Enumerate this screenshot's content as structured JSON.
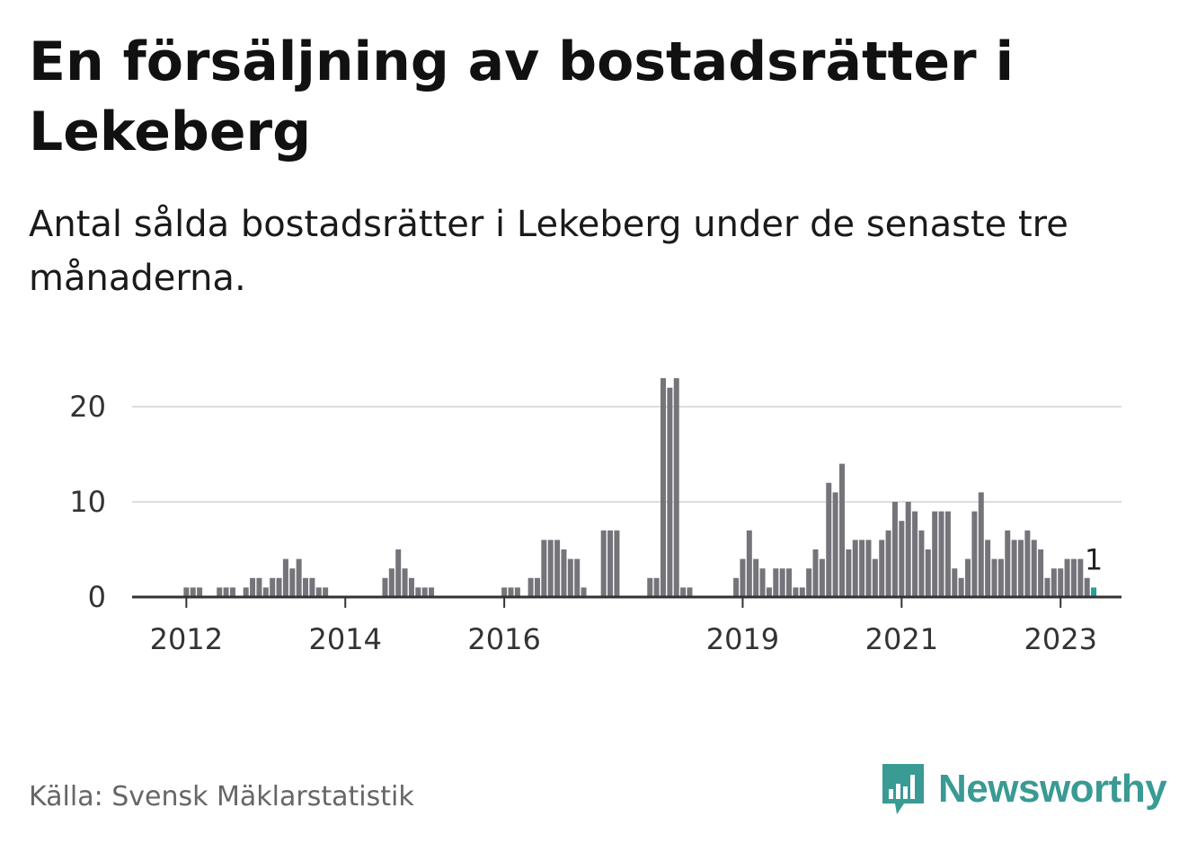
{
  "title": "En försäljning av bostadsrätter i Lekeberg",
  "subtitle": "Antal sålda bostadsrätter i Lekeberg under de senaste tre månaderna.",
  "source": "Källa: Svensk Mäklarstatistik",
  "brand": {
    "name": "Newsworthy",
    "icon": "bar-chart-bubble-icon",
    "color": "#3a9a94"
  },
  "colors": {
    "bar": "#75747a",
    "highlight": "#2a9d97",
    "grid": "#dddddd",
    "axis": "#333333"
  },
  "chart_data": {
    "type": "bar",
    "title": "En försäljning av bostadsrätter i Lekeberg",
    "xlabel": "",
    "ylabel": "",
    "ylim": [
      0,
      23
    ],
    "yticks": [
      0,
      10,
      20
    ],
    "xticks": [
      {
        "label": "2012",
        "index": 1
      },
      {
        "label": "2014",
        "index": 25
      },
      {
        "label": "2016",
        "index": 49
      },
      {
        "label": "2019",
        "index": 85
      },
      {
        "label": "2021",
        "index": 109
      },
      {
        "label": "2023",
        "index": 133
      }
    ],
    "grid": true,
    "start": "2011-11",
    "frequency": "monthly",
    "values": [
      0,
      1,
      1,
      1,
      0,
      0,
      1,
      1,
      1,
      0,
      1,
      2,
      2,
      1,
      2,
      2,
      4,
      3,
      4,
      2,
      2,
      1,
      1,
      0,
      0,
      0,
      0,
      0,
      0,
      0,
      0,
      2,
      3,
      5,
      3,
      2,
      1,
      1,
      1,
      0,
      0,
      0,
      0,
      0,
      0,
      0,
      0,
      0,
      0,
      1,
      1,
      1,
      0,
      2,
      2,
      6,
      6,
      6,
      5,
      4,
      4,
      1,
      0,
      0,
      7,
      7,
      7,
      0,
      0,
      0,
      0,
      2,
      2,
      23,
      22,
      23,
      1,
      1,
      0,
      0,
      0,
      0,
      0,
      0,
      2,
      4,
      7,
      4,
      3,
      1,
      3,
      3,
      3,
      1,
      1,
      3,
      5,
      4,
      12,
      11,
      14,
      5,
      6,
      6,
      6,
      4,
      6,
      7,
      10,
      8,
      10,
      9,
      7,
      5,
      9,
      9,
      9,
      3,
      2,
      4,
      9,
      11,
      6,
      4,
      4,
      7,
      6,
      6,
      7,
      6,
      5,
      2,
      3,
      3,
      4,
      4,
      4,
      2,
      1
    ],
    "highlight_index": 138,
    "highlight_label": "1"
  }
}
